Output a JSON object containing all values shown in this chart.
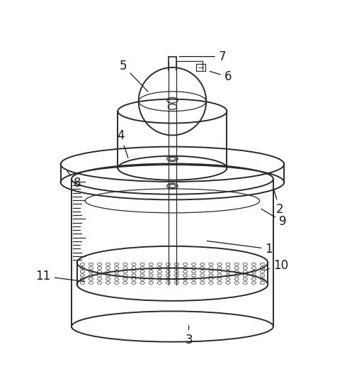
{
  "bg_color": "#ffffff",
  "line_color": "#2a2a2a",
  "label_color": "#1a1a1a",
  "line_lw": 1.4,
  "thin_lw": 0.9,
  "dot_lw": 0.5,
  "font_size": 12
}
